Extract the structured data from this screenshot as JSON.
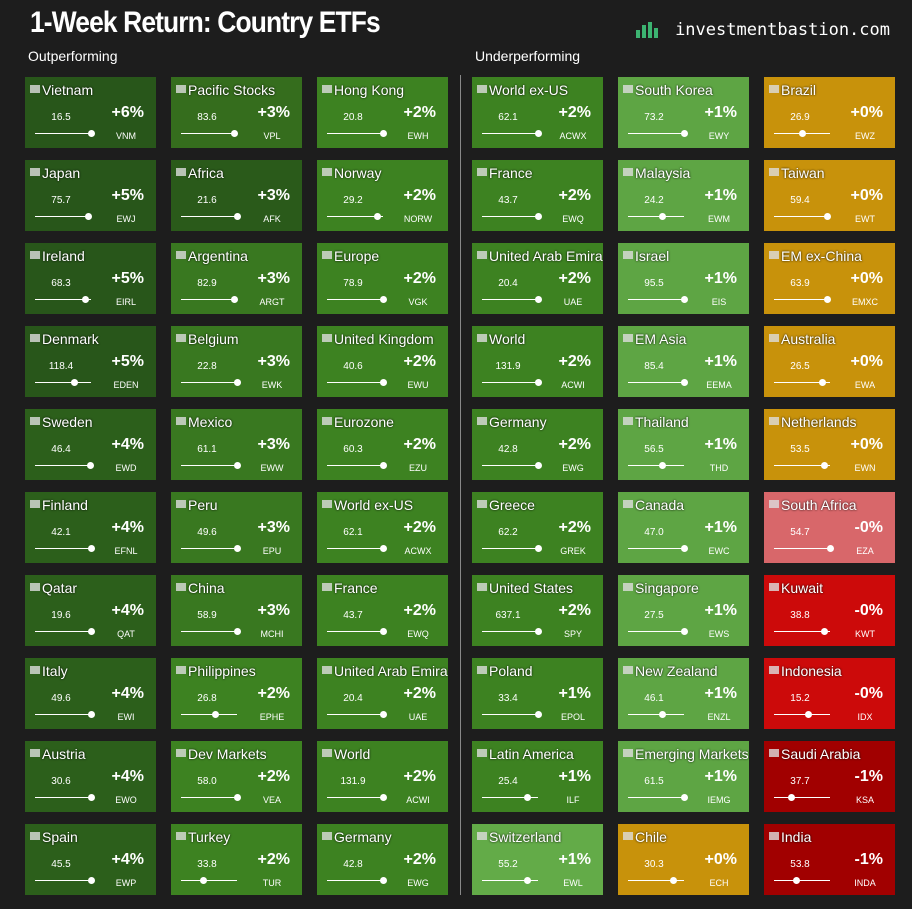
{
  "header": {
    "title": "1-Week Return: Country ETFs",
    "site": "investmentbastion.com"
  },
  "sections": [
    {
      "title": "Outperforming",
      "tiles": [
        {
          "name": "Vietnam",
          "price": "16.5",
          "change": "+6%",
          "ticker": "VNM",
          "position": 1.0,
          "color": "#28561a"
        },
        {
          "name": "Japan",
          "price": "75.7",
          "change": "+5%",
          "ticker": "EWJ",
          "position": 0.95,
          "color": "#28561a"
        },
        {
          "name": "Ireland",
          "price": "68.3",
          "change": "+5%",
          "ticker": "EIRL",
          "position": 0.9,
          "color": "#28561a"
        },
        {
          "name": "Denmark",
          "price": "118.4",
          "change": "+5%",
          "ticker": "EDEN",
          "position": 0.7,
          "color": "#28561a"
        },
        {
          "name": "Sweden",
          "price": "46.4",
          "change": "+4%",
          "ticker": "EWD",
          "position": 0.98,
          "color": "#2c5f1b"
        },
        {
          "name": "Finland",
          "price": "42.1",
          "change": "+4%",
          "ticker": "EFNL",
          "position": 1.0,
          "color": "#2c5f1b"
        },
        {
          "name": "Qatar",
          "price": "19.6",
          "change": "+4%",
          "ticker": "QAT",
          "position": 1.0,
          "color": "#2c5f1b"
        },
        {
          "name": "Italy",
          "price": "49.6",
          "change": "+4%",
          "ticker": "EWI",
          "position": 1.0,
          "color": "#2c5f1b"
        },
        {
          "name": "Austria",
          "price": "30.6",
          "change": "+4%",
          "ticker": "EWO",
          "position": 1.0,
          "color": "#2c5f1b"
        },
        {
          "name": "Spain",
          "price": "45.5",
          "change": "+4%",
          "ticker": "EWP",
          "position": 1.0,
          "color": "#2c5f1b"
        },
        {
          "name": "Pacific Stocks",
          "price": "83.6",
          "change": "+3%",
          "ticker": "VPL",
          "position": 0.95,
          "color": "#356d1d"
        },
        {
          "name": "Africa",
          "price": "21.6",
          "change": "+3%",
          "ticker": "AFK",
          "position": 1.0,
          "color": "#2a5a1a"
        },
        {
          "name": "Argentina",
          "price": "82.9",
          "change": "+3%",
          "ticker": "ARGT",
          "position": 0.95,
          "color": "#397820"
        },
        {
          "name": "Belgium",
          "price": "22.8",
          "change": "+3%",
          "ticker": "EWK",
          "position": 1.0,
          "color": "#397820"
        },
        {
          "name": "Mexico",
          "price": "61.1",
          "change": "+3%",
          "ticker": "EWW",
          "position": 1.0,
          "color": "#397820"
        },
        {
          "name": "Peru",
          "price": "49.6",
          "change": "+3%",
          "ticker": "EPU",
          "position": 1.0,
          "color": "#397820"
        },
        {
          "name": "China",
          "price": "58.9",
          "change": "+3%",
          "ticker": "MCHI",
          "position": 1.0,
          "color": "#397820"
        },
        {
          "name": "Philippines",
          "price": "26.8",
          "change": "+2%",
          "ticker": "EPHE",
          "position": 0.6,
          "color": "#3d8221"
        },
        {
          "name": "Dev Markets",
          "price": "58.0",
          "change": "+2%",
          "ticker": "VEA",
          "position": 1.0,
          "color": "#3d8221"
        },
        {
          "name": "Turkey",
          "price": "33.8",
          "change": "+2%",
          "ticker": "TUR",
          "position": 0.4,
          "color": "#3d8221"
        },
        {
          "name": "Hong Kong",
          "price": "20.8",
          "change": "+2%",
          "ticker": "EWH",
          "position": 1.0,
          "color": "#3d8221"
        },
        {
          "name": "Norway",
          "price": "29.2",
          "change": "+2%",
          "ticker": "NORW",
          "position": 0.9,
          "color": "#3d8221"
        },
        {
          "name": "Europe",
          "price": "78.9",
          "change": "+2%",
          "ticker": "VGK",
          "position": 1.0,
          "color": "#3d8221"
        },
        {
          "name": "United Kingdom",
          "price": "40.6",
          "change": "+2%",
          "ticker": "EWU",
          "position": 1.0,
          "color": "#3d8221"
        },
        {
          "name": "Eurozone",
          "price": "60.3",
          "change": "+2%",
          "ticker": "EZU",
          "position": 1.0,
          "color": "#3d8221"
        },
        {
          "name": "World ex-US",
          "price": "62.1",
          "change": "+2%",
          "ticker": "ACWX",
          "position": 1.0,
          "color": "#3d8221"
        },
        {
          "name": "France",
          "price": "43.7",
          "change": "+2%",
          "ticker": "EWQ",
          "position": 1.0,
          "color": "#3d8221"
        },
        {
          "name": "United Arab Emira",
          "price": "20.4",
          "change": "+2%",
          "ticker": "UAE",
          "position": 1.0,
          "color": "#3d8221"
        },
        {
          "name": "World",
          "price": "131.9",
          "change": "+2%",
          "ticker": "ACWI",
          "position": 1.0,
          "color": "#3d8221"
        },
        {
          "name": "Germany",
          "price": "42.8",
          "change": "+2%",
          "ticker": "EWG",
          "position": 1.0,
          "color": "#3d8221"
        }
      ]
    },
    {
      "title": "Underperforming",
      "tiles": [
        {
          "name": "World ex-US",
          "price": "62.1",
          "change": "+2%",
          "ticker": "ACWX",
          "position": 1.0,
          "color": "#3d8221"
        },
        {
          "name": "France",
          "price": "43.7",
          "change": "+2%",
          "ticker": "EWQ",
          "position": 1.0,
          "color": "#3d8221"
        },
        {
          "name": "United Arab Emira",
          "price": "20.4",
          "change": "+2%",
          "ticker": "UAE",
          "position": 1.0,
          "color": "#3d8221"
        },
        {
          "name": "World",
          "price": "131.9",
          "change": "+2%",
          "ticker": "ACWI",
          "position": 1.0,
          "color": "#3d8221"
        },
        {
          "name": "Germany",
          "price": "42.8",
          "change": "+2%",
          "ticker": "EWG",
          "position": 1.0,
          "color": "#3d8221"
        },
        {
          "name": "Greece",
          "price": "62.2",
          "change": "+2%",
          "ticker": "GREK",
          "position": 1.0,
          "color": "#3d8221"
        },
        {
          "name": "United States",
          "price": "637.1",
          "change": "+2%",
          "ticker": "SPY",
          "position": 1.0,
          "color": "#3d8221"
        },
        {
          "name": "Poland",
          "price": "33.4",
          "change": "+1%",
          "ticker": "EPOL",
          "position": 1.0,
          "color": "#3d8221"
        },
        {
          "name": "Latin America",
          "price": "25.4",
          "change": "+1%",
          "ticker": "ILF",
          "position": 0.8,
          "color": "#3d8221"
        },
        {
          "name": "Switzerland",
          "price": "55.2",
          "change": "+1%",
          "ticker": "EWL",
          "position": 0.8,
          "color": "#63ab48"
        },
        {
          "name": "South Korea",
          "price": "73.2",
          "change": "+1%",
          "ticker": "EWY",
          "position": 1.0,
          "color": "#5ea544"
        },
        {
          "name": "Malaysia",
          "price": "24.2",
          "change": "+1%",
          "ticker": "EWM",
          "position": 0.6,
          "color": "#5ea544"
        },
        {
          "name": "Israel",
          "price": "95.5",
          "change": "+1%",
          "ticker": "EIS",
          "position": 1.0,
          "color": "#5ea544"
        },
        {
          "name": "EM Asia",
          "price": "85.4",
          "change": "+1%",
          "ticker": "EEMA",
          "position": 1.0,
          "color": "#5ea544"
        },
        {
          "name": "Thailand",
          "price": "56.5",
          "change": "+1%",
          "ticker": "THD",
          "position": 0.6,
          "color": "#5ea544"
        },
        {
          "name": "Canada",
          "price": "47.0",
          "change": "+1%",
          "ticker": "EWC",
          "position": 1.0,
          "color": "#5ea544"
        },
        {
          "name": "Singapore",
          "price": "27.5",
          "change": "+1%",
          "ticker": "EWS",
          "position": 1.0,
          "color": "#5ea544"
        },
        {
          "name": "New Zealand",
          "price": "46.1",
          "change": "+1%",
          "ticker": "ENZL",
          "position": 0.6,
          "color": "#5ea544"
        },
        {
          "name": "Emerging Markets",
          "price": "61.5",
          "change": "+1%",
          "ticker": "IEMG",
          "position": 1.0,
          "color": "#5ea544"
        },
        {
          "name": "Chile",
          "price": "30.3",
          "change": "+0%",
          "ticker": "ECH",
          "position": 0.8,
          "color": "#c8920b"
        },
        {
          "name": "Brazil",
          "price": "26.9",
          "change": "+0%",
          "ticker": "EWZ",
          "position": 0.5,
          "color": "#c8920b"
        },
        {
          "name": "Taiwan",
          "price": "59.4",
          "change": "+0%",
          "ticker": "EWT",
          "position": 0.95,
          "color": "#c8920b"
        },
        {
          "name": "EM ex-China",
          "price": "63.9",
          "change": "+0%",
          "ticker": "EMXC",
          "position": 0.95,
          "color": "#c8920b"
        },
        {
          "name": "Australia",
          "price": "26.5",
          "change": "+0%",
          "ticker": "EWA",
          "position": 0.85,
          "color": "#c8920b"
        },
        {
          "name": "Netherlands",
          "price": "53.5",
          "change": "+0%",
          "ticker": "EWN",
          "position": 0.9,
          "color": "#c8920b"
        },
        {
          "name": "South Africa",
          "price": "54.7",
          "change": "-0%",
          "ticker": "EZA",
          "position": 1.0,
          "color": "#d8676a"
        },
        {
          "name": "Kuwait",
          "price": "38.8",
          "change": "-0%",
          "ticker": "KWT",
          "position": 0.9,
          "color": "#cc0a0a"
        },
        {
          "name": "Indonesia",
          "price": "15.2",
          "change": "-0%",
          "ticker": "IDX",
          "position": 0.6,
          "color": "#cc0a0a"
        },
        {
          "name": "Saudi Arabia",
          "price": "37.7",
          "change": "-1%",
          "ticker": "KSA",
          "position": 0.3,
          "color": "#a10000"
        },
        {
          "name": "India",
          "price": "53.8",
          "change": "-1%",
          "ticker": "INDA",
          "position": 0.4,
          "color": "#a10000"
        }
      ]
    }
  ]
}
